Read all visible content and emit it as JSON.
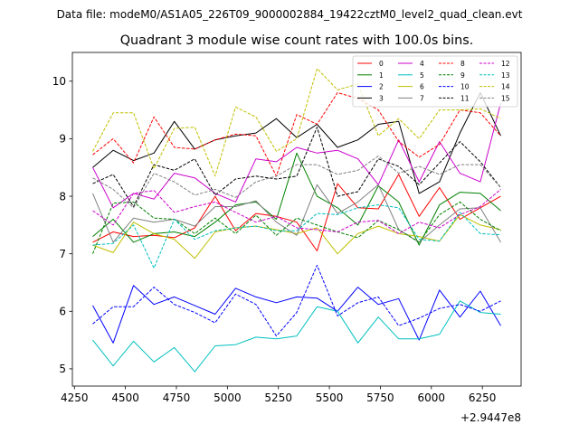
{
  "chart_data": {
    "type": "line",
    "suptitle": "Data file: modeM0/AS1A05_226T09_9000002884_19422cztM0_level2_quad_clean.evt",
    "title": "Quadrant 3 module wise count rates with 100.0s bins.",
    "xlabel": "",
    "ylabel": "",
    "x_offset_label": "+2.9447e8",
    "xlim": [
      4240,
      6440
    ],
    "ylim": [
      4.7,
      10.5
    ],
    "xticks": [
      4250,
      4500,
      4750,
      5000,
      5250,
      5500,
      5750,
      6000,
      6250
    ],
    "yticks": [
      5,
      6,
      7,
      8,
      9,
      10
    ],
    "x": [
      4340,
      4440,
      4540,
      4640,
      4740,
      4840,
      4940,
      5040,
      5140,
      5240,
      5340,
      5440,
      5540,
      5640,
      5740,
      5840,
      5940,
      6040,
      6140,
      6240,
      6340
    ],
    "legend_location": "top-right",
    "series": [
      {
        "name": "0",
        "color": "#ff0000",
        "dash": false,
        "values": [
          7.2,
          7.38,
          7.3,
          7.32,
          7.28,
          7.45,
          8.0,
          7.4,
          7.7,
          7.65,
          7.55,
          7.05,
          8.22,
          7.8,
          7.78,
          8.38,
          7.65,
          8.15,
          7.6,
          7.8,
          8.0
        ]
      },
      {
        "name": "1",
        "color": "#008000",
        "dash": false,
        "values": [
          7.3,
          7.6,
          7.2,
          7.35,
          7.38,
          7.3,
          7.55,
          7.85,
          7.9,
          7.6,
          8.75,
          8.0,
          7.8,
          7.5,
          8.18,
          7.9,
          7.15,
          7.85,
          8.07,
          8.05,
          7.75
        ]
      },
      {
        "name": "2",
        "color": "#0000ff",
        "dash": false,
        "values": [
          6.1,
          5.45,
          6.45,
          6.12,
          6.25,
          6.1,
          5.95,
          6.4,
          6.25,
          6.15,
          6.25,
          6.23,
          6.0,
          6.42,
          6.12,
          6.22,
          5.5,
          6.37,
          5.9,
          6.35,
          5.75
        ]
      },
      {
        "name": "3",
        "color": "#000000",
        "dash": false,
        "values": [
          8.5,
          8.8,
          8.62,
          8.75,
          9.3,
          8.82,
          8.98,
          9.05,
          9.1,
          9.35,
          9.02,
          9.25,
          8.85,
          8.98,
          9.25,
          9.3,
          8.05,
          8.25,
          9.1,
          9.8,
          9.05
        ]
      },
      {
        "name": "4",
        "color": "#cc00cc",
        "dash": false,
        "values": [
          8.5,
          7.8,
          8.05,
          7.95,
          8.4,
          8.32,
          8.05,
          7.9,
          8.65,
          8.6,
          8.85,
          8.75,
          8.8,
          8.65,
          8.2,
          8.98,
          8.25,
          8.95,
          8.4,
          8.25,
          9.62
        ]
      },
      {
        "name": "5",
        "color": "#00bfbf",
        "dash": false,
        "values": [
          5.5,
          5.05,
          5.48,
          5.12,
          5.37,
          4.95,
          5.4,
          5.42,
          5.55,
          5.52,
          5.57,
          6.08,
          6.0,
          5.45,
          5.9,
          5.52,
          5.52,
          5.6,
          6.18,
          5.98,
          5.95
        ]
      },
      {
        "name": "6",
        "color": "#bfbf00",
        "dash": false,
        "values": [
          7.15,
          7.02,
          7.55,
          7.35,
          7.25,
          6.92,
          7.38,
          7.45,
          7.48,
          7.42,
          7.35,
          7.45,
          7.0,
          7.35,
          7.48,
          7.35,
          7.3,
          7.22,
          7.68,
          7.5,
          7.42
        ]
      },
      {
        "name": "7",
        "color": "#808080",
        "dash": false,
        "values": [
          8.05,
          7.2,
          7.62,
          7.55,
          7.6,
          7.48,
          7.82,
          7.82,
          7.92,
          7.55,
          7.32,
          8.2,
          7.7,
          7.9,
          8.2,
          7.42,
          7.2,
          7.5,
          7.78,
          7.8,
          7.2
        ]
      },
      {
        "name": "8",
        "color": "#ff0000",
        "dash": true,
        "values": [
          8.72,
          9.0,
          8.58,
          9.38,
          8.85,
          8.82,
          8.98,
          9.08,
          9.05,
          8.35,
          9.42,
          9.25,
          9.8,
          9.7,
          9.5,
          8.95,
          8.68,
          8.9,
          9.5,
          9.45,
          9.05
        ]
      },
      {
        "name": "9",
        "color": "#008000",
        "dash": true,
        "values": [
          7.0,
          7.88,
          7.9,
          7.62,
          7.6,
          7.35,
          7.62,
          7.35,
          7.67,
          7.32,
          7.62,
          7.5,
          7.38,
          7.28,
          7.58,
          7.42,
          7.2,
          7.68,
          7.9,
          7.6,
          7.4
        ]
      },
      {
        "name": "10",
        "color": "#0000ff",
        "dash": true,
        "values": [
          5.78,
          6.08,
          6.08,
          6.42,
          6.12,
          5.98,
          5.8,
          6.3,
          6.12,
          5.57,
          5.98,
          6.8,
          5.92,
          6.15,
          6.25,
          5.75,
          5.88,
          6.05,
          6.12,
          6.0,
          6.18
        ]
      },
      {
        "name": "11",
        "color": "#000000",
        "dash": true,
        "values": [
          8.22,
          8.38,
          7.82,
          8.55,
          8.45,
          8.65,
          8.02,
          8.3,
          8.35,
          8.3,
          8.35,
          9.2,
          8.0,
          8.08,
          8.65,
          8.52,
          8.2,
          8.58,
          8.95,
          8.6,
          8.15
        ]
      },
      {
        "name": "12",
        "color": "#cc00cc",
        "dash": true,
        "values": [
          7.75,
          7.5,
          8.05,
          8.1,
          7.72,
          7.82,
          7.9,
          7.72,
          7.55,
          7.65,
          7.45,
          7.42,
          7.38,
          7.55,
          7.58,
          7.35,
          7.55,
          7.45,
          7.68,
          7.82,
          8.12
        ]
      },
      {
        "name": "13",
        "color": "#00bfbf",
        "dash": true,
        "values": [
          7.15,
          7.18,
          7.5,
          6.75,
          7.6,
          7.25,
          7.4,
          7.45,
          7.48,
          7.4,
          7.4,
          7.7,
          7.68,
          7.8,
          7.85,
          7.8,
          7.25,
          7.22,
          7.72,
          7.35,
          7.33
        ]
      },
      {
        "name": "14",
        "color": "#bfbf00",
        "dash": true,
        "values": [
          8.78,
          9.45,
          9.45,
          8.48,
          9.18,
          9.2,
          8.35,
          9.55,
          9.38,
          8.78,
          9.0,
          10.22,
          9.85,
          9.95,
          9.05,
          9.35,
          9.0,
          9.5,
          9.5,
          9.52,
          9.35
        ]
      },
      {
        "name": "15",
        "color": "#808080",
        "dash": true,
        "values": [
          8.32,
          8.12,
          7.8,
          8.4,
          8.25,
          8.02,
          8.12,
          7.98,
          8.25,
          8.35,
          8.55,
          8.55,
          8.38,
          8.45,
          8.7,
          8.4,
          8.52,
          8.38,
          8.55,
          8.55,
          8.15
        ]
      }
    ]
  }
}
